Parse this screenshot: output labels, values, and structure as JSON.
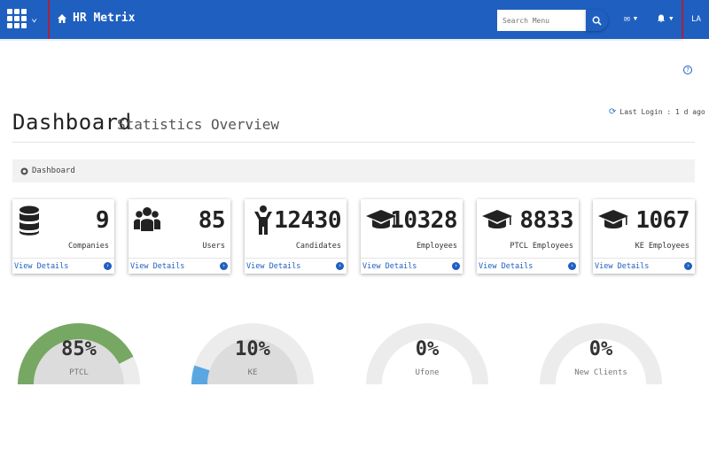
{
  "topbar": {
    "brand": "HR Metrix",
    "search_placeholder": "Search Menu",
    "user_initials": "LA",
    "caret": "▾"
  },
  "page": {
    "title": "Dashboard",
    "subtitle": "Statistics Overview",
    "last_login": "Last Login : 1 d ago"
  },
  "breadcrumb": {
    "label": "Dashboard"
  },
  "cards": [
    {
      "icon": "database-icon",
      "value": "9",
      "label": "Companies",
      "link": "View Details"
    },
    {
      "icon": "users-icon",
      "value": "85",
      "label": "Users",
      "link": "View Details"
    },
    {
      "icon": "person-icon",
      "value": "12430",
      "label": "Candidates",
      "link": "View Details"
    },
    {
      "icon": "graduation-cap-icon",
      "value": "10328",
      "label": "Employees",
      "link": "View Details"
    },
    {
      "icon": "graduation-cap-icon",
      "value": "8833",
      "label": "PTCL Employees",
      "link": "View Details"
    },
    {
      "icon": "graduation-cap-icon",
      "value": "1067",
      "label": "KE Employees",
      "link": "View Details"
    }
  ],
  "gauges": [
    {
      "value_text": "85%",
      "label": "PTCL",
      "fraction": 0.85,
      "color": "#77a863"
    },
    {
      "value_text": "10%",
      "label": "KE",
      "fraction": 0.1,
      "color": "#5aa6e0"
    },
    {
      "value_text": "0%",
      "label": "Ufone",
      "fraction": 0.0,
      "color": "#77a863"
    },
    {
      "value_text": "0%",
      "label": "New Clients",
      "fraction": 0.0,
      "color": "#77a863"
    }
  ],
  "colors": {
    "topbar": "#1f5fbf",
    "accent_divider": "#a8233b",
    "gauge_track": "#ececec",
    "gauge_inner": "#dcdcdc"
  }
}
